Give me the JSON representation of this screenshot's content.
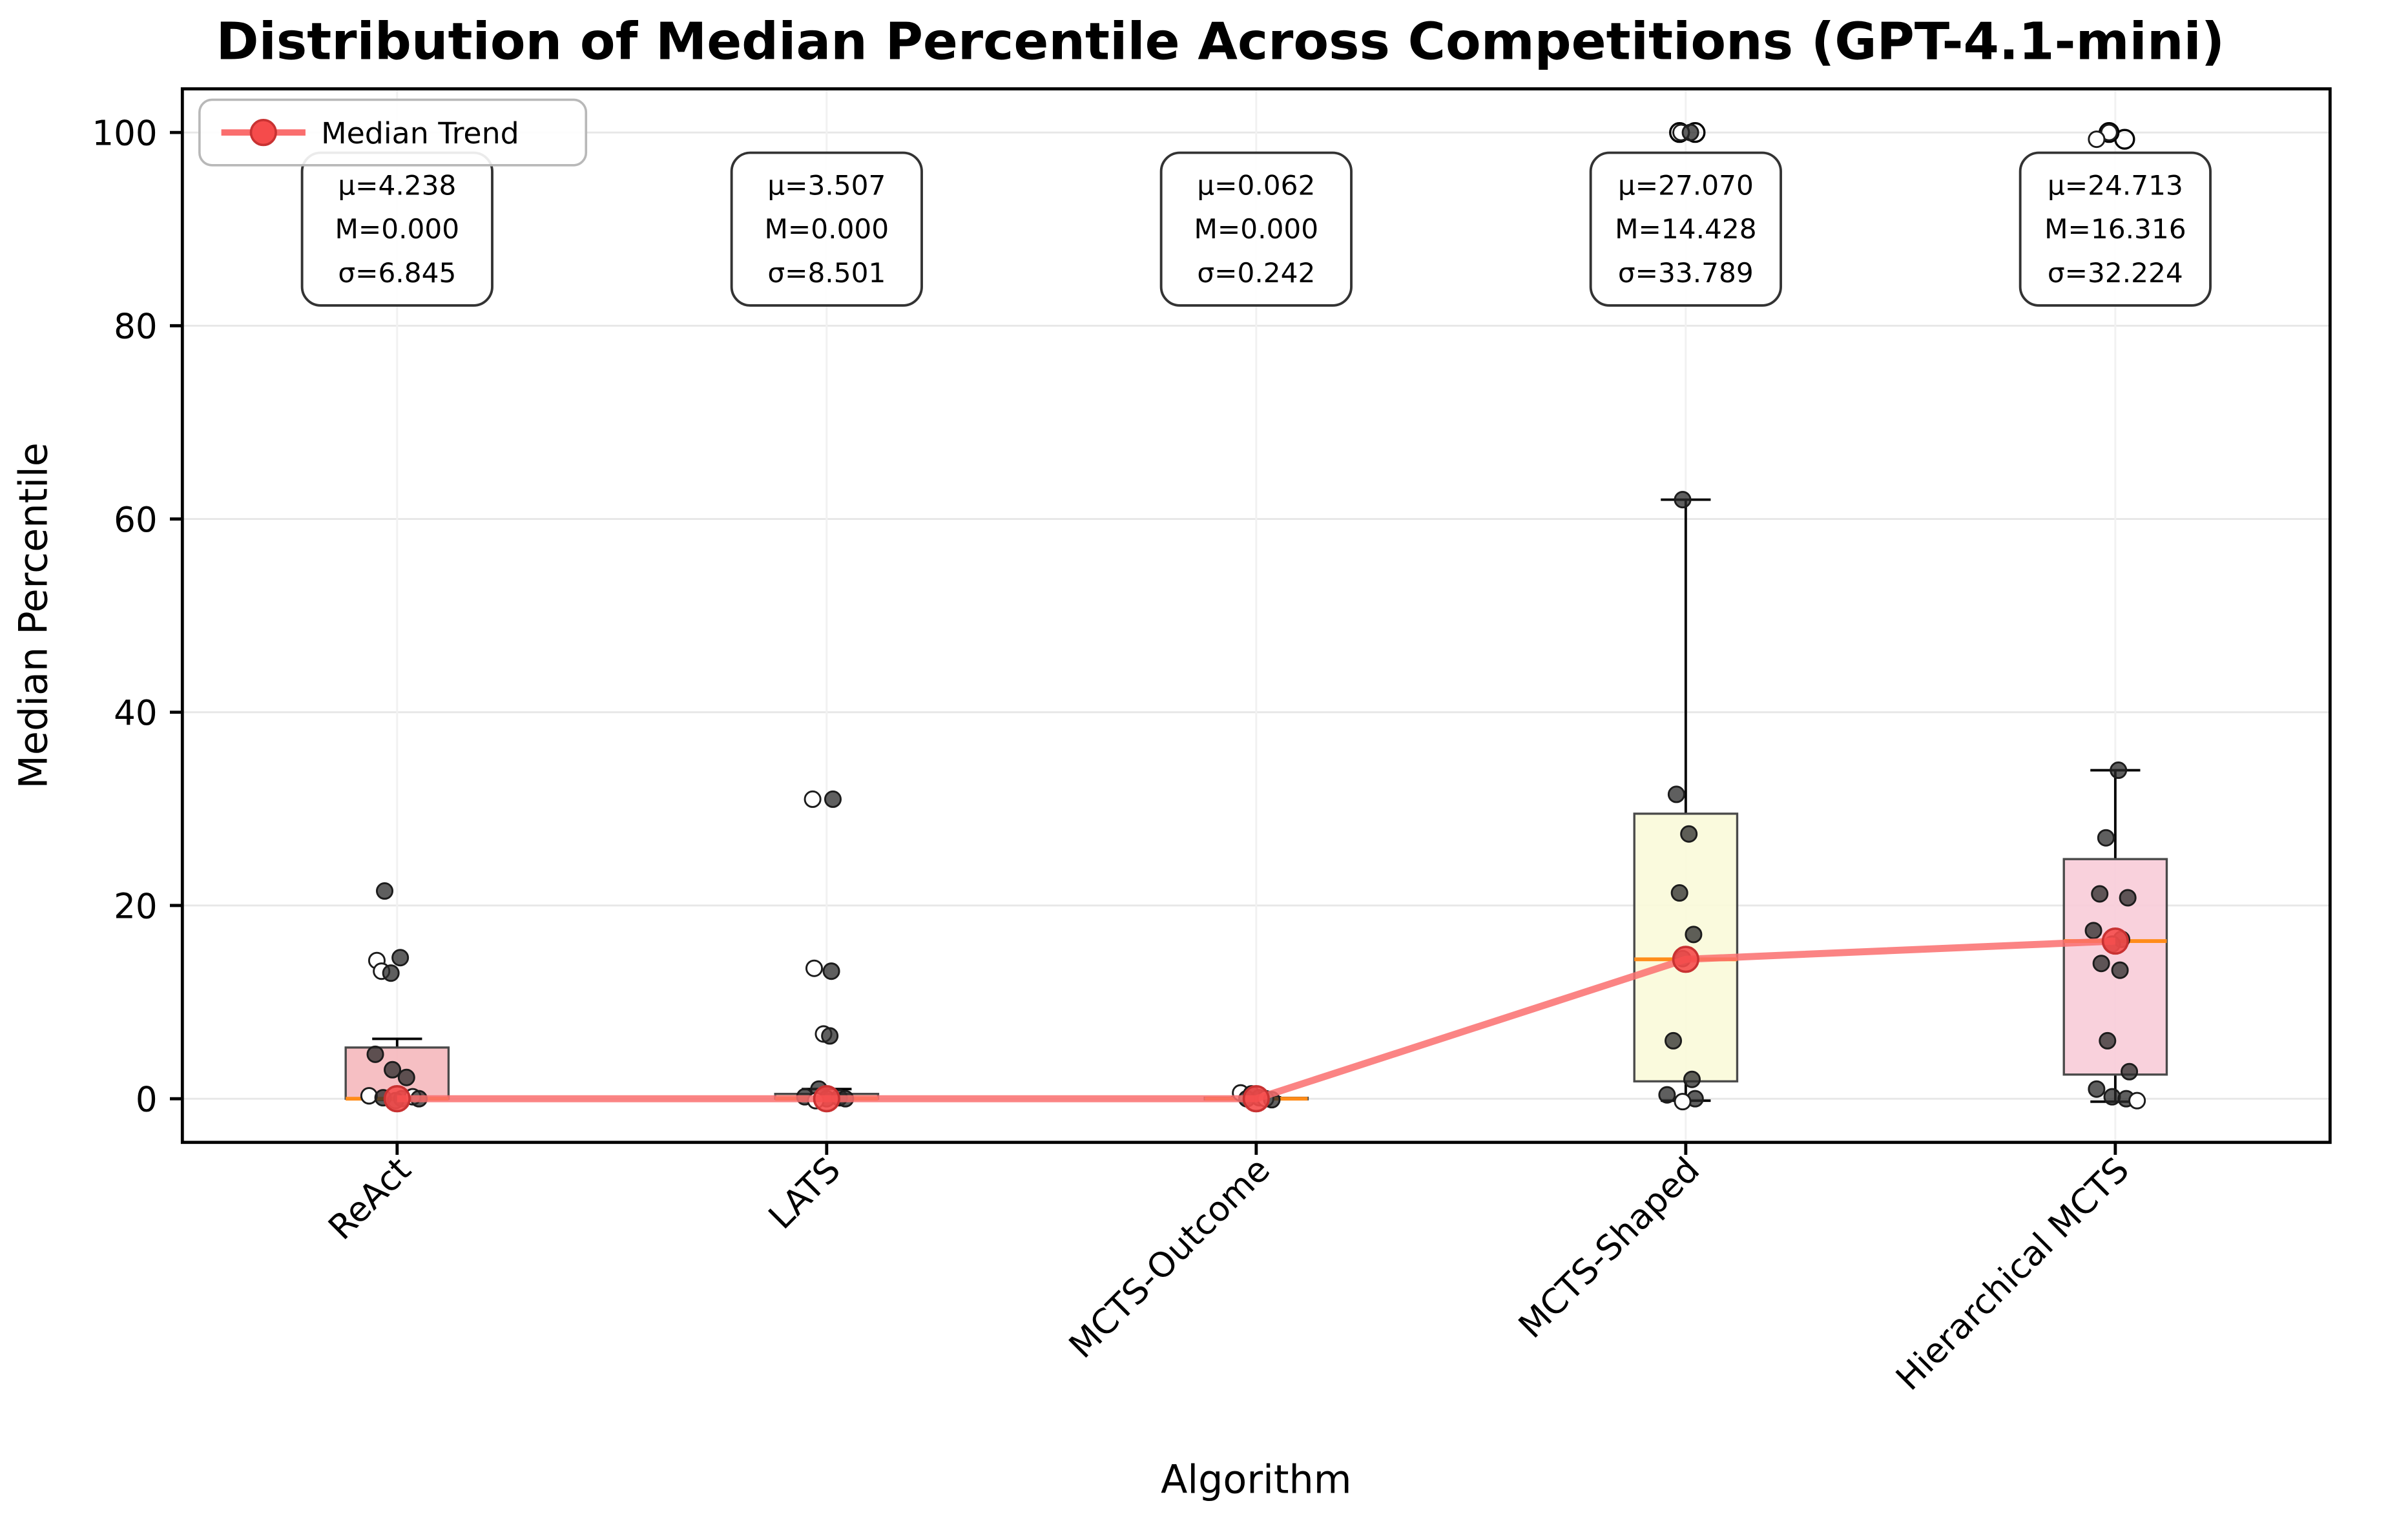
{
  "chart_data": {
    "type": "box",
    "title": "Distribution of Median Percentile Across Competitions (GPT-4.1-mini)",
    "xlabel": "Algorithm",
    "ylabel": "Median Percentile",
    "ylim": [
      -5,
      104
    ],
    "yticks": [
      0,
      20,
      40,
      60,
      80,
      100
    ],
    "grid": true,
    "legend_position": "upper-left",
    "categories": [
      "ReAct",
      "LATS",
      "MCTS-Outcome",
      "MCTS-Shaped",
      "Hierarchical MCTS"
    ],
    "stats": [
      {
        "lines": [
          "μ=4.238",
          "M=0.000",
          "σ=6.845"
        ]
      },
      {
        "lines": [
          "μ=3.507",
          "M=0.000",
          "σ=8.501"
        ]
      },
      {
        "lines": [
          "μ=0.062",
          "M=0.000",
          "σ=0.242"
        ]
      },
      {
        "lines": [
          "μ=27.070",
          "M=14.428",
          "σ=33.789"
        ]
      },
      {
        "lines": [
          "μ=24.713",
          "M=16.316",
          "σ=32.224"
        ]
      }
    ],
    "boxes": [
      {
        "q1": 0.0,
        "q3": 5.3,
        "median": 0.0,
        "whisker_low": -0.1,
        "whisker_high": 6.2,
        "fliers": [],
        "color": "#f5b8bc"
      },
      {
        "q1": 0.0,
        "q3": 0.5,
        "median": 0.0,
        "whisker_low": -0.1,
        "whisker_high": 1.0,
        "fliers": [],
        "color": "#f9d9b3"
      },
      {
        "q1": -0.02,
        "q3": 0.1,
        "median": 0.0,
        "whisker_low": -0.05,
        "whisker_high": 0.15,
        "fliers": [],
        "color": "#cfe6cf"
      },
      {
        "q1": 1.8,
        "q3": 29.5,
        "median": 14.428,
        "whisker_low": -0.2,
        "whisker_high": 62.0,
        "fliers": [
          100,
          100
        ],
        "color": "#f9f9d9"
      },
      {
        "q1": 2.5,
        "q3": 24.8,
        "median": 16.316,
        "whisker_low": -0.3,
        "whisker_high": 34.0,
        "fliers": [
          100,
          99.3
        ],
        "color": "#f8ccd8"
      }
    ],
    "points": [
      [
        [
          -8,
          21.5,
          0
        ],
        [
          -13,
          14.3,
          1
        ],
        [
          2,
          14.6,
          0
        ],
        [
          -10,
          13.2,
          1
        ],
        [
          -4,
          13.0,
          0
        ],
        [
          -14,
          4.6,
          0
        ],
        [
          -3,
          3.0,
          0
        ],
        [
          6,
          2.2,
          0
        ],
        [
          -18,
          0.3,
          1
        ],
        [
          -9,
          0.1,
          0
        ],
        [
          3,
          0.0,
          0
        ],
        [
          10,
          0.2,
          1
        ],
        [
          -1,
          -0.2,
          0
        ],
        [
          14,
          0.0,
          0
        ]
      ],
      [
        [
          -9,
          31.0,
          1
        ],
        [
          4,
          31.0,
          0
        ],
        [
          -8,
          13.5,
          1
        ],
        [
          3,
          13.2,
          0
        ],
        [
          -2,
          6.7,
          1
        ],
        [
          2,
          6.5,
          0
        ],
        [
          -5,
          1.0,
          0
        ],
        [
          -14,
          0.2,
          0
        ],
        [
          0,
          0.0,
          0
        ],
        [
          8,
          0.1,
          0
        ],
        [
          -7,
          -0.2,
          1
        ],
        [
          12,
          0.0,
          0
        ]
      ],
      [
        [
          -10,
          0.6,
          1
        ],
        [
          -3,
          0.5,
          0
        ],
        [
          2,
          0.1,
          0
        ],
        [
          -6,
          0.0,
          0
        ],
        [
          6,
          0.0,
          1
        ],
        [
          10,
          -0.1,
          0
        ]
      ],
      [
        [
          -3,
          100,
          1
        ],
        [
          3,
          100,
          0
        ],
        [
          -2,
          62,
          0
        ],
        [
          -6,
          31.5,
          0
        ],
        [
          2,
          27.4,
          0
        ],
        [
          -4,
          21.3,
          0
        ],
        [
          5,
          17.0,
          0
        ],
        [
          -2,
          14.5,
          0
        ],
        [
          -8,
          6.0,
          0
        ],
        [
          4,
          2.0,
          0
        ],
        [
          -12,
          0.4,
          0
        ],
        [
          6,
          0.0,
          0
        ],
        [
          -2,
          -0.3,
          1
        ]
      ],
      [
        [
          -4,
          100,
          1
        ],
        [
          -12,
          99.3,
          1
        ],
        [
          2,
          34,
          0
        ],
        [
          -6,
          27,
          0
        ],
        [
          -10,
          21.2,
          0
        ],
        [
          8,
          20.8,
          0
        ],
        [
          -14,
          17.4,
          0
        ],
        [
          4,
          16.5,
          0
        ],
        [
          -2,
          16.0,
          0
        ],
        [
          -9,
          14.0,
          0
        ],
        [
          3,
          13.3,
          0
        ],
        [
          -5,
          6.0,
          0
        ],
        [
          9,
          2.8,
          0
        ],
        [
          -12,
          1.0,
          0
        ],
        [
          -2,
          0.2,
          0
        ],
        [
          7,
          0.0,
          0
        ],
        [
          14,
          -0.2,
          1
        ]
      ]
    ],
    "trend": {
      "label": "Median Trend",
      "values": [
        0.0,
        0.0,
        0.0,
        14.428,
        16.316
      ],
      "line_color": "#fa6e6e",
      "marker_color": "#f54b4b",
      "marker_edge": "#c83232"
    },
    "colors": {
      "median_line": "#ff8c1a",
      "box_edge": "#4a4a4a",
      "point": "#2a2a2a",
      "grid": "#e7e7e7"
    }
  }
}
